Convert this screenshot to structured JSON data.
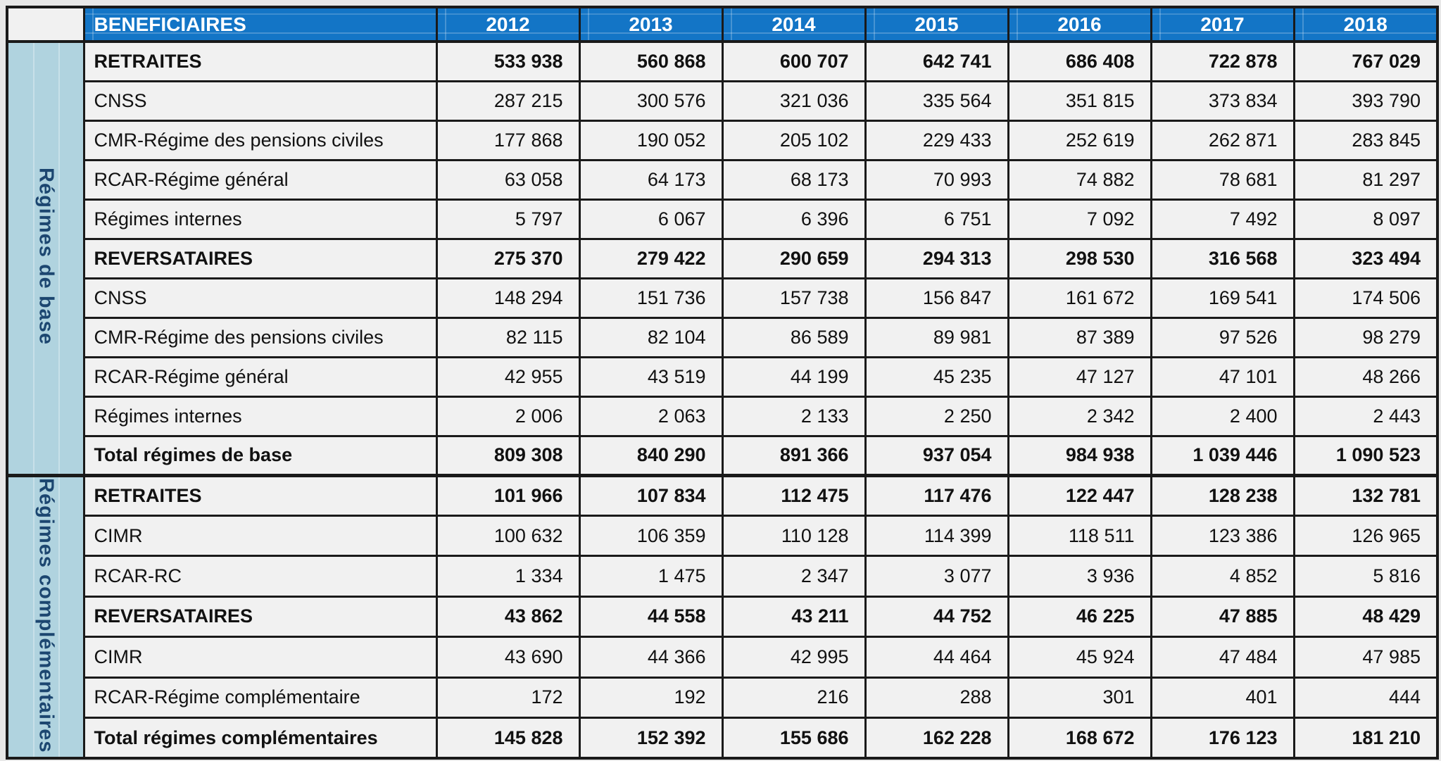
{
  "table": {
    "header": {
      "label": "BENEFICIAIRES",
      "years": [
        "2012",
        "2013",
        "2014",
        "2015",
        "2016",
        "2017",
        "2018"
      ]
    },
    "sections": [
      {
        "group_label": "Régimes de base",
        "rows": [
          {
            "label": "RETRAITES",
            "bold": true,
            "values": [
              "533 938",
              "560 868",
              "600 707",
              "642 741",
              "686 408",
              "722 878",
              "767 029"
            ]
          },
          {
            "label": "CNSS",
            "bold": false,
            "values": [
              "287 215",
              "300 576",
              "321 036",
              "335 564",
              "351 815",
              "373 834",
              "393 790"
            ]
          },
          {
            "label": "CMR-Régime des pensions civiles",
            "bold": false,
            "values": [
              "177 868",
              "190 052",
              "205 102",
              "229 433",
              "252 619",
              "262 871",
              "283 845"
            ]
          },
          {
            "label": "RCAR-Régime général",
            "bold": false,
            "values": [
              "63 058",
              "64 173",
              "68 173",
              "70 993",
              "74 882",
              "78 681",
              "81 297"
            ]
          },
          {
            "label": "Régimes internes",
            "bold": false,
            "values": [
              "5 797",
              "6 067",
              "6 396",
              "6 751",
              "7 092",
              "7 492",
              "8 097"
            ]
          },
          {
            "label": "REVERSATAIRES",
            "bold": true,
            "values": [
              "275 370",
              "279 422",
              "290 659",
              "294 313",
              "298 530",
              "316 568",
              "323 494"
            ]
          },
          {
            "label": "CNSS",
            "bold": false,
            "values": [
              "148 294",
              "151 736",
              "157 738",
              "156 847",
              "161 672",
              "169 541",
              "174 506"
            ]
          },
          {
            "label": "CMR-Régime des pensions civiles",
            "bold": false,
            "values": [
              "82 115",
              "82 104",
              "86 589",
              "89 981",
              "87 389",
              "97 526",
              "98 279"
            ]
          },
          {
            "label": "RCAR-Régime général",
            "bold": false,
            "values": [
              "42 955",
              "43 519",
              "44 199",
              "45 235",
              "47 127",
              "47 101",
              "48 266"
            ]
          },
          {
            "label": "Régimes internes",
            "bold": false,
            "values": [
              "2 006",
              "2 063",
              "2 133",
              "2 250",
              "2 342",
              "2 400",
              "2 443"
            ]
          },
          {
            "label": "Total régimes de base",
            "bold": true,
            "values": [
              "809 308",
              "840 290",
              "891 366",
              "937 054",
              "984 938",
              "1 039 446",
              "1 090 523"
            ]
          }
        ]
      },
      {
        "group_label": "Régimes complémentaires",
        "rows": [
          {
            "label": "RETRAITES",
            "bold": true,
            "values": [
              "101 966",
              "107 834",
              "112 475",
              "117 476",
              "122 447",
              "128 238",
              "132 781"
            ]
          },
          {
            "label": "CIMR",
            "bold": false,
            "values": [
              "100 632",
              "106 359",
              "110 128",
              "114 399",
              "118 511",
              "123 386",
              "126 965"
            ]
          },
          {
            "label": "RCAR-RC",
            "bold": false,
            "values": [
              "1 334",
              "1 475",
              "2 347",
              "3 077",
              "3 936",
              "4 852",
              "5 816"
            ]
          },
          {
            "label": "REVERSATAIRES",
            "bold": true,
            "values": [
              "43 862",
              "44 558",
              "43 211",
              "44 752",
              "46 225",
              "47 885",
              "48 429"
            ]
          },
          {
            "label": "CIMR",
            "bold": false,
            "values": [
              "43 690",
              "44 366",
              "42 995",
              "44 464",
              "45 924",
              "47 484",
              "47 985"
            ]
          },
          {
            "label": "RCAR-Régime complémentaire",
            "bold": false,
            "values": [
              "172",
              "192",
              "216",
              "288",
              "301",
              "401",
              "444"
            ]
          },
          {
            "label": "Total régimes complémentaires",
            "bold": true,
            "values": [
              "145 828",
              "152 392",
              "155 686",
              "162 228",
              "168 672",
              "176 123",
              "181 210"
            ]
          }
        ]
      }
    ]
  },
  "colors": {
    "header_bg": "#1375C6",
    "header_text": "#FFFFFF",
    "group_bg": "#B0D3DF",
    "group_text": "#1C4670",
    "cell_bg": "#F1F1F1",
    "corner_bg": "#F1F1F1",
    "border": "#1A1A1A",
    "page_bg": "#E8E8E8",
    "text": "#111111"
  }
}
